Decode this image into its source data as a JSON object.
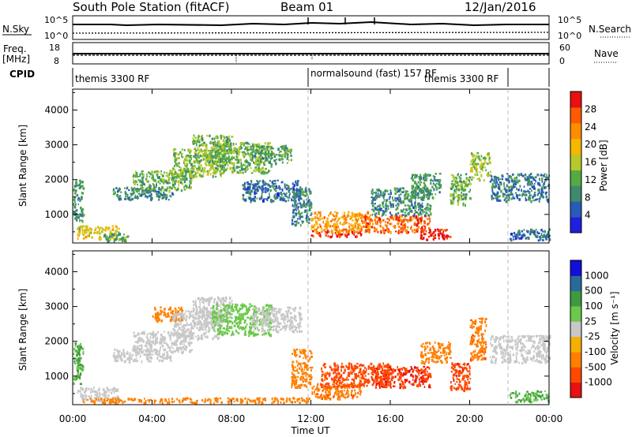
{
  "header": {
    "station": "South Pole Station (fitACF)",
    "beam": "Beam 01",
    "date": "12/Jan/2016"
  },
  "strips": {
    "nsky_label": "N.Sky",
    "nsearch_label": "N.Search",
    "nsky_ticks": [
      "10^5",
      "10^0"
    ],
    "nsearch_ticks": [
      "10^5",
      "10^0"
    ],
    "freq_label_1": "Freq.",
    "freq_label_2": "[MHz]",
    "freq_ticks": [
      "18",
      "8"
    ],
    "nave_label": "Nave",
    "nave_ticks": [
      "60",
      "0"
    ],
    "cpid_label": "CPID",
    "cpid_segments": [
      {
        "label": "themis 3300 RF",
        "start": 0.0
      },
      {
        "label": "normalsound (fast) 157 RF",
        "start": 12.0
      },
      {
        "label": "themis 3300 RF",
        "start": 21.9
      }
    ]
  },
  "chart_data": [
    {
      "type": "heatmap",
      "name": "Power",
      "ylabel": "Slant Range [km]",
      "xlabel": "Time UT",
      "x_ticks": [
        "00:00",
        "04:00",
        "08:00",
        "12:00",
        "16:00",
        "20:00",
        "00:00"
      ],
      "y_ticks": [
        1000,
        2000,
        3000,
        4000
      ],
      "xlim": [
        0,
        24
      ],
      "ylim": [
        180,
        4600
      ],
      "colorbar": {
        "label": "Power [dB]",
        "ticks": [
          4,
          8,
          12,
          16,
          20,
          24,
          28
        ],
        "range": [
          0,
          32
        ],
        "colors": [
          "#1f1fe0",
          "#2a5ab8",
          "#3d8a6e",
          "#55aa44",
          "#b8c82a",
          "#f5b800",
          "#ff8c00",
          "#ff5a00",
          "#e81010"
        ]
      },
      "regions": [
        {
          "t0": 0.0,
          "t1": 0.5,
          "r0": 800,
          "r1": 2000,
          "v": 10
        },
        {
          "t0": 0.2,
          "t1": 2.3,
          "r0": 300,
          "r1": 700,
          "v": 18
        },
        {
          "t0": 1.5,
          "t1": 2.8,
          "r0": 250,
          "r1": 500,
          "v": 12
        },
        {
          "t0": 2.0,
          "t1": 5.0,
          "r0": 1450,
          "r1": 1800,
          "v": 8
        },
        {
          "t0": 3.0,
          "t1": 6.0,
          "r0": 1700,
          "r1": 2300,
          "v": 12
        },
        {
          "t0": 5.0,
          "t1": 7.5,
          "r0": 2100,
          "r1": 2900,
          "v": 14
        },
        {
          "t0": 6.0,
          "t1": 8.0,
          "r0": 2500,
          "r1": 3300,
          "v": 13
        },
        {
          "t0": 7.0,
          "t1": 10.0,
          "r0": 2200,
          "r1": 3100,
          "v": 13
        },
        {
          "t0": 9.0,
          "t1": 11.0,
          "r0": 2500,
          "r1": 3000,
          "v": 11
        },
        {
          "t0": 8.5,
          "t1": 11.5,
          "r0": 1400,
          "r1": 2000,
          "v": 7
        },
        {
          "t0": 11.0,
          "t1": 12.0,
          "r0": 700,
          "r1": 1800,
          "v": 9
        },
        {
          "t0": 12.0,
          "t1": 14.5,
          "r0": 380,
          "r1": 560,
          "v": 30
        },
        {
          "t0": 12.0,
          "t1": 15.0,
          "r0": 500,
          "r1": 1100,
          "v": 22
        },
        {
          "t0": 14.5,
          "t1": 18.0,
          "r0": 500,
          "r1": 1000,
          "v": 26
        },
        {
          "t0": 17.5,
          "t1": 19.0,
          "r0": 300,
          "r1": 600,
          "v": 31
        },
        {
          "t0": 15.0,
          "t1": 18.0,
          "r0": 1000,
          "r1": 1800,
          "v": 9
        },
        {
          "t0": 17.0,
          "t1": 18.5,
          "r0": 1500,
          "r1": 2200,
          "v": 10
        },
        {
          "t0": 19.0,
          "t1": 20.0,
          "r0": 1300,
          "r1": 2200,
          "v": 13
        },
        {
          "t0": 20.0,
          "t1": 21.0,
          "r0": 2000,
          "r1": 2800,
          "v": 15
        },
        {
          "t0": 21.0,
          "t1": 24.0,
          "r0": 1400,
          "r1": 2200,
          "v": 8
        },
        {
          "t0": 22.0,
          "t1": 24.0,
          "r0": 280,
          "r1": 600,
          "v": 7
        }
      ]
    },
    {
      "type": "heatmap",
      "name": "Velocity",
      "ylabel": "Slant Range [km]",
      "xlabel": "Time UT",
      "x_ticks": [
        "00:00",
        "04:00",
        "08:00",
        "12:00",
        "16:00",
        "20:00",
        "00:00"
      ],
      "y_ticks": [
        1000,
        2000,
        3000,
        4000
      ],
      "xlim": [
        0,
        24
      ],
      "ylim": [
        180,
        4600
      ],
      "colorbar": {
        "label": "Velocity [m s⁻¹]",
        "ticks": [
          "1000",
          "500",
          "100",
          "25",
          "-25",
          "-100",
          "-500",
          "-1000"
        ],
        "colors": [
          "#1010d8",
          "#2a6a9a",
          "#3d9a3d",
          "#6cc84a",
          "#c8c8c8",
          "#f5b000",
          "#ff8000",
          "#ff4800",
          "#e81010"
        ]
      },
      "regions": [
        {
          "t0": 0.0,
          "t1": 0.5,
          "r0": 800,
          "r1": 2000,
          "v": 100
        },
        {
          "t0": 0.2,
          "t1": 2.3,
          "r0": 300,
          "r1": 700,
          "v": 0
        },
        {
          "t0": 2.0,
          "t1": 5.0,
          "r0": 1450,
          "r1": 1800,
          "v": 0
        },
        {
          "t0": 3.0,
          "t1": 6.0,
          "r0": 1700,
          "r1": 2300,
          "v": 0
        },
        {
          "t0": 4.0,
          "t1": 5.5,
          "r0": 2600,
          "r1": 3000,
          "v": -200
        },
        {
          "t0": 5.0,
          "t1": 7.5,
          "r0": 2100,
          "r1": 2900,
          "v": 0
        },
        {
          "t0": 6.0,
          "t1": 8.0,
          "r0": 2500,
          "r1": 3300,
          "v": 0
        },
        {
          "t0": 7.0,
          "t1": 10.0,
          "r0": 2200,
          "r1": 3100,
          "v": 60
        },
        {
          "t0": 9.0,
          "t1": 11.5,
          "r0": 2300,
          "r1": 3000,
          "v": 0
        },
        {
          "t0": 11.0,
          "t1": 12.0,
          "r0": 700,
          "r1": 1800,
          "v": -150
        },
        {
          "t0": 12.0,
          "t1": 14.5,
          "r0": 380,
          "r1": 800,
          "v": -400
        },
        {
          "t0": 12.5,
          "t1": 16.0,
          "r0": 700,
          "r1": 1400,
          "v": -700
        },
        {
          "t0": 15.0,
          "t1": 18.0,
          "r0": 700,
          "r1": 1300,
          "v": -900
        },
        {
          "t0": 17.5,
          "t1": 19.0,
          "r0": 1400,
          "r1": 2000,
          "v": -300
        },
        {
          "t0": 19.0,
          "t1": 20.0,
          "r0": 600,
          "r1": 1400,
          "v": -800
        },
        {
          "t0": 20.0,
          "t1": 20.8,
          "r0": 1500,
          "r1": 2700,
          "v": -400
        },
        {
          "t0": 21.0,
          "t1": 24.0,
          "r0": 1400,
          "r1": 2200,
          "v": 0
        },
        {
          "t0": 22.0,
          "t1": 24.0,
          "r0": 280,
          "r1": 600,
          "v": 100
        },
        {
          "t0": 0.5,
          "t1": 12.0,
          "r0": 250,
          "r1": 400,
          "v": -200
        }
      ]
    }
  ]
}
